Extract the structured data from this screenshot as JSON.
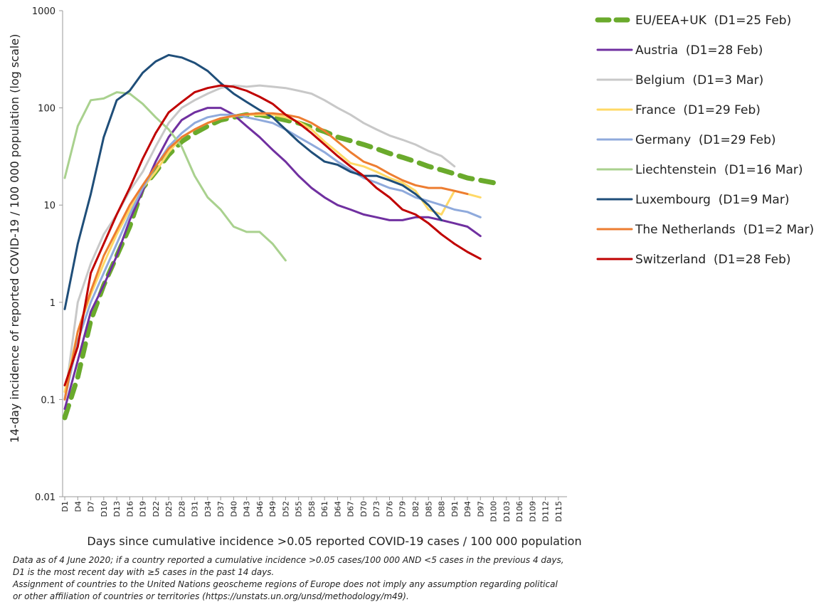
{
  "chart_data": {
    "type": "line",
    "y_label": "14-day incidence of reported COVID-19 / 100 000 population (log scale)",
    "x_label": "Days since cumulative incidence >0.05 reported COVID-19 cases / 100 000 population",
    "notes": [
      "Data as of 4 June 2020; if a country reported a cumulative incidence >0.05 cases/100 000 AND <5 cases in the previous 4 days,",
      "D1 is the most recent day with ≥5 cases in the past 14 days.",
      "Assignment of countries to the United Nations geoscheme regions of Europe does not imply any assumption regarding political",
      "or other affiliation of countries or territories (https://unstats.un.org/unsd/methodology/m49)."
    ],
    "y_log": true,
    "ylim": [
      0.01,
      1000
    ],
    "yticks": [
      0.01,
      0.1,
      1,
      10,
      100,
      1000
    ],
    "xlim": [
      0.5,
      117
    ],
    "xticks": [
      {
        "value": 1,
        "label": "D1"
      },
      {
        "value": 4,
        "label": "D4"
      },
      {
        "value": 7,
        "label": "D7"
      },
      {
        "value": 10,
        "label": "D10"
      },
      {
        "value": 13,
        "label": "D13"
      },
      {
        "value": 16,
        "label": "D16"
      },
      {
        "value": 19,
        "label": "D19"
      },
      {
        "value": 22,
        "label": "D22"
      },
      {
        "value": 25,
        "label": "D25"
      },
      {
        "value": 28,
        "label": "D28"
      },
      {
        "value": 31,
        "label": "D31"
      },
      {
        "value": 34,
        "label": "D34"
      },
      {
        "value": 37,
        "label": "D37"
      },
      {
        "value": 40,
        "label": "D40"
      },
      {
        "value": 43,
        "label": "D43"
      },
      {
        "value": 46,
        "label": "D46"
      },
      {
        "value": 49,
        "label": "D49"
      },
      {
        "value": 52,
        "label": "D52"
      },
      {
        "value": 55,
        "label": "D55"
      },
      {
        "value": 58,
        "label": "D58"
      },
      {
        "value": 61,
        "label": "D61"
      },
      {
        "value": 64,
        "label": "D64"
      },
      {
        "value": 67,
        "label": "D67"
      },
      {
        "value": 70,
        "label": "D70"
      },
      {
        "value": 73,
        "label": "D73"
      },
      {
        "value": 76,
        "label": "D76"
      },
      {
        "value": 79,
        "label": "D79"
      },
      {
        "value": 82,
        "label": "D82"
      },
      {
        "value": 85,
        "label": "D85"
      },
      {
        "value": 88,
        "label": "D88"
      },
      {
        "value": 91,
        "label": "D91"
      },
      {
        "value": 94,
        "label": "D94"
      },
      {
        "value": 97,
        "label": "D97"
      },
      {
        "value": 100,
        "label": "D100"
      },
      {
        "value": 103,
        "label": "D103"
      },
      {
        "value": 106,
        "label": "D106"
      },
      {
        "value": 109,
        "label": "D109"
      },
      {
        "value": 112,
        "label": "D112"
      },
      {
        "value": 115,
        "label": "D115"
      }
    ],
    "x": [
      1,
      4,
      7,
      10,
      13,
      16,
      19,
      22,
      25,
      28,
      31,
      34,
      37,
      40,
      43,
      46,
      49,
      52,
      55,
      58,
      61,
      64,
      67,
      70,
      73,
      76,
      79,
      82,
      85,
      88,
      91,
      94,
      97,
      100
    ],
    "series": [
      {
        "name": "EU/EEA+UK  (D1=25 Feb)",
        "color": "#6aaa2c",
        "style": "dashed",
        "values": [
          0.065,
          0.17,
          0.65,
          1.5,
          3,
          6,
          15,
          22,
          33,
          45,
          55,
          65,
          75,
          80,
          85,
          85,
          80,
          75,
          70,
          63,
          57,
          50,
          46,
          42,
          38,
          34,
          31,
          28,
          25,
          23,
          21,
          19,
          18,
          17
        ]
      },
      {
        "name": "Austria  (D1=28 Feb)",
        "color": "#7030a0",
        "style": "solid",
        "values": [
          0.08,
          0.25,
          0.8,
          1.5,
          3,
          7,
          14,
          28,
          50,
          75,
          90,
          100,
          100,
          85,
          65,
          50,
          37,
          28,
          20,
          15,
          12,
          10,
          9,
          8,
          7.5,
          7,
          7,
          7.5,
          7.5,
          7,
          6.5,
          6,
          4.8,
          null
        ]
      },
      {
        "name": "Belgium  (D1=3 Mar)",
        "color": "#c8c8c8",
        "style": "solid",
        "values": [
          0.1,
          1,
          2.5,
          5,
          8,
          14,
          22,
          40,
          70,
          100,
          120,
          140,
          160,
          170,
          165,
          170,
          165,
          160,
          150,
          140,
          120,
          100,
          85,
          70,
          60,
          52,
          47,
          42,
          36,
          32,
          25,
          null,
          null,
          null
        ]
      },
      {
        "name": "France  (D1=29 Feb)",
        "color": "#ffd966",
        "style": "solid",
        "values": [
          0.12,
          0.5,
          1.2,
          2.5,
          5,
          9,
          15,
          22,
          35,
          50,
          60,
          70,
          78,
          82,
          85,
          85,
          85,
          80,
          72,
          60,
          45,
          35,
          27,
          25,
          22,
          19,
          17,
          14,
          9,
          8,
          14,
          13,
          12,
          null
        ]
      },
      {
        "name": "Germany  (D1=29 Feb)",
        "color": "#8faadc",
        "style": "solid",
        "values": [
          0.1,
          0.4,
          1,
          2,
          4,
          8,
          15,
          25,
          40,
          55,
          70,
          80,
          85,
          85,
          80,
          75,
          70,
          60,
          50,
          42,
          35,
          28,
          23,
          19,
          17,
          15,
          14,
          12,
          11,
          10,
          9,
          8.5,
          7.5,
          null
        ]
      },
      {
        "name": "Liechtenstein  (D1=16 Mar)",
        "color": "#a9d18e",
        "style": "solid",
        "values": [
          19,
          65,
          120,
          125,
          145,
          140,
          110,
          80,
          60,
          40,
          20,
          12,
          9,
          6,
          5.3,
          5.3,
          4,
          2.7,
          null,
          null,
          null,
          null,
          null,
          null,
          null,
          null,
          null,
          null,
          null,
          null,
          null,
          null,
          null,
          null
        ]
      },
      {
        "name": "Luxembourg  (D1=9 Mar)",
        "color": "#1f4e79",
        "style": "solid",
        "values": [
          0.85,
          4,
          13,
          50,
          120,
          150,
          230,
          300,
          350,
          330,
          290,
          240,
          180,
          140,
          115,
          95,
          80,
          60,
          45,
          35,
          28,
          26,
          22,
          20,
          20,
          18,
          16,
          13,
          10,
          7,
          null,
          null,
          null,
          null
        ]
      },
      {
        "name": "The Netherlands  (D1=2 Mar)",
        "color": "#ed7d31",
        "style": "solid",
        "values": [
          0.1,
          0.5,
          1.3,
          3,
          5.5,
          10,
          16,
          25,
          38,
          50,
          60,
          70,
          78,
          83,
          86,
          88,
          88,
          85,
          80,
          70,
          58,
          45,
          35,
          28,
          25,
          21,
          18,
          16,
          15,
          15,
          14,
          13,
          null,
          null
        ]
      },
      {
        "name": "Switzerland  (D1=28 Feb)",
        "color": "#c00000",
        "style": "solid",
        "values": [
          0.14,
          0.35,
          2,
          4,
          8,
          15,
          30,
          55,
          90,
          115,
          145,
          160,
          170,
          165,
          150,
          130,
          110,
          85,
          70,
          55,
          42,
          32,
          25,
          20,
          15,
          12,
          9,
          8,
          6.5,
          5,
          4,
          3.3,
          2.8,
          null
        ]
      }
    ]
  }
}
